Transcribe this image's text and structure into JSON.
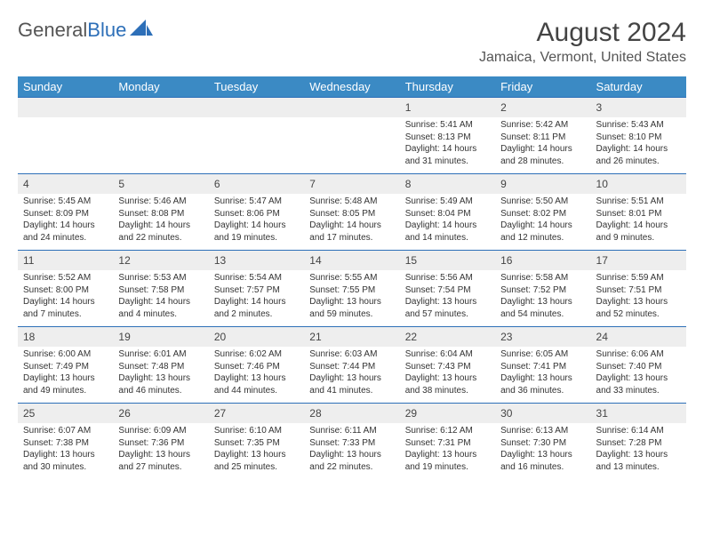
{
  "brand": {
    "name_part1": "General",
    "name_part2": "Blue"
  },
  "title": "August 2024",
  "location": "Jamaica, Vermont, United States",
  "colors": {
    "header_bg": "#3b8ac4",
    "row_divider": "#2d6fb8",
    "daynum_bg": "#eeeeee"
  },
  "day_headers": [
    "Sunday",
    "Monday",
    "Tuesday",
    "Wednesday",
    "Thursday",
    "Friday",
    "Saturday"
  ],
  "weeks": [
    [
      null,
      null,
      null,
      null,
      {
        "n": "1",
        "sr": "Sunrise: 5:41 AM",
        "ss": "Sunset: 8:13 PM",
        "d1": "Daylight: 14 hours",
        "d2": "and 31 minutes."
      },
      {
        "n": "2",
        "sr": "Sunrise: 5:42 AM",
        "ss": "Sunset: 8:11 PM",
        "d1": "Daylight: 14 hours",
        "d2": "and 28 minutes."
      },
      {
        "n": "3",
        "sr": "Sunrise: 5:43 AM",
        "ss": "Sunset: 8:10 PM",
        "d1": "Daylight: 14 hours",
        "d2": "and 26 minutes."
      }
    ],
    [
      {
        "n": "4",
        "sr": "Sunrise: 5:45 AM",
        "ss": "Sunset: 8:09 PM",
        "d1": "Daylight: 14 hours",
        "d2": "and 24 minutes."
      },
      {
        "n": "5",
        "sr": "Sunrise: 5:46 AM",
        "ss": "Sunset: 8:08 PM",
        "d1": "Daylight: 14 hours",
        "d2": "and 22 minutes."
      },
      {
        "n": "6",
        "sr": "Sunrise: 5:47 AM",
        "ss": "Sunset: 8:06 PM",
        "d1": "Daylight: 14 hours",
        "d2": "and 19 minutes."
      },
      {
        "n": "7",
        "sr": "Sunrise: 5:48 AM",
        "ss": "Sunset: 8:05 PM",
        "d1": "Daylight: 14 hours",
        "d2": "and 17 minutes."
      },
      {
        "n": "8",
        "sr": "Sunrise: 5:49 AM",
        "ss": "Sunset: 8:04 PM",
        "d1": "Daylight: 14 hours",
        "d2": "and 14 minutes."
      },
      {
        "n": "9",
        "sr": "Sunrise: 5:50 AM",
        "ss": "Sunset: 8:02 PM",
        "d1": "Daylight: 14 hours",
        "d2": "and 12 minutes."
      },
      {
        "n": "10",
        "sr": "Sunrise: 5:51 AM",
        "ss": "Sunset: 8:01 PM",
        "d1": "Daylight: 14 hours",
        "d2": "and 9 minutes."
      }
    ],
    [
      {
        "n": "11",
        "sr": "Sunrise: 5:52 AM",
        "ss": "Sunset: 8:00 PM",
        "d1": "Daylight: 14 hours",
        "d2": "and 7 minutes."
      },
      {
        "n": "12",
        "sr": "Sunrise: 5:53 AM",
        "ss": "Sunset: 7:58 PM",
        "d1": "Daylight: 14 hours",
        "d2": "and 4 minutes."
      },
      {
        "n": "13",
        "sr": "Sunrise: 5:54 AM",
        "ss": "Sunset: 7:57 PM",
        "d1": "Daylight: 14 hours",
        "d2": "and 2 minutes."
      },
      {
        "n": "14",
        "sr": "Sunrise: 5:55 AM",
        "ss": "Sunset: 7:55 PM",
        "d1": "Daylight: 13 hours",
        "d2": "and 59 minutes."
      },
      {
        "n": "15",
        "sr": "Sunrise: 5:56 AM",
        "ss": "Sunset: 7:54 PM",
        "d1": "Daylight: 13 hours",
        "d2": "and 57 minutes."
      },
      {
        "n": "16",
        "sr": "Sunrise: 5:58 AM",
        "ss": "Sunset: 7:52 PM",
        "d1": "Daylight: 13 hours",
        "d2": "and 54 minutes."
      },
      {
        "n": "17",
        "sr": "Sunrise: 5:59 AM",
        "ss": "Sunset: 7:51 PM",
        "d1": "Daylight: 13 hours",
        "d2": "and 52 minutes."
      }
    ],
    [
      {
        "n": "18",
        "sr": "Sunrise: 6:00 AM",
        "ss": "Sunset: 7:49 PM",
        "d1": "Daylight: 13 hours",
        "d2": "and 49 minutes."
      },
      {
        "n": "19",
        "sr": "Sunrise: 6:01 AM",
        "ss": "Sunset: 7:48 PM",
        "d1": "Daylight: 13 hours",
        "d2": "and 46 minutes."
      },
      {
        "n": "20",
        "sr": "Sunrise: 6:02 AM",
        "ss": "Sunset: 7:46 PM",
        "d1": "Daylight: 13 hours",
        "d2": "and 44 minutes."
      },
      {
        "n": "21",
        "sr": "Sunrise: 6:03 AM",
        "ss": "Sunset: 7:44 PM",
        "d1": "Daylight: 13 hours",
        "d2": "and 41 minutes."
      },
      {
        "n": "22",
        "sr": "Sunrise: 6:04 AM",
        "ss": "Sunset: 7:43 PM",
        "d1": "Daylight: 13 hours",
        "d2": "and 38 minutes."
      },
      {
        "n": "23",
        "sr": "Sunrise: 6:05 AM",
        "ss": "Sunset: 7:41 PM",
        "d1": "Daylight: 13 hours",
        "d2": "and 36 minutes."
      },
      {
        "n": "24",
        "sr": "Sunrise: 6:06 AM",
        "ss": "Sunset: 7:40 PM",
        "d1": "Daylight: 13 hours",
        "d2": "and 33 minutes."
      }
    ],
    [
      {
        "n": "25",
        "sr": "Sunrise: 6:07 AM",
        "ss": "Sunset: 7:38 PM",
        "d1": "Daylight: 13 hours",
        "d2": "and 30 minutes."
      },
      {
        "n": "26",
        "sr": "Sunrise: 6:09 AM",
        "ss": "Sunset: 7:36 PM",
        "d1": "Daylight: 13 hours",
        "d2": "and 27 minutes."
      },
      {
        "n": "27",
        "sr": "Sunrise: 6:10 AM",
        "ss": "Sunset: 7:35 PM",
        "d1": "Daylight: 13 hours",
        "d2": "and 25 minutes."
      },
      {
        "n": "28",
        "sr": "Sunrise: 6:11 AM",
        "ss": "Sunset: 7:33 PM",
        "d1": "Daylight: 13 hours",
        "d2": "and 22 minutes."
      },
      {
        "n": "29",
        "sr": "Sunrise: 6:12 AM",
        "ss": "Sunset: 7:31 PM",
        "d1": "Daylight: 13 hours",
        "d2": "and 19 minutes."
      },
      {
        "n": "30",
        "sr": "Sunrise: 6:13 AM",
        "ss": "Sunset: 7:30 PM",
        "d1": "Daylight: 13 hours",
        "d2": "and 16 minutes."
      },
      {
        "n": "31",
        "sr": "Sunrise: 6:14 AM",
        "ss": "Sunset: 7:28 PM",
        "d1": "Daylight: 13 hours",
        "d2": "and 13 minutes."
      }
    ]
  ]
}
